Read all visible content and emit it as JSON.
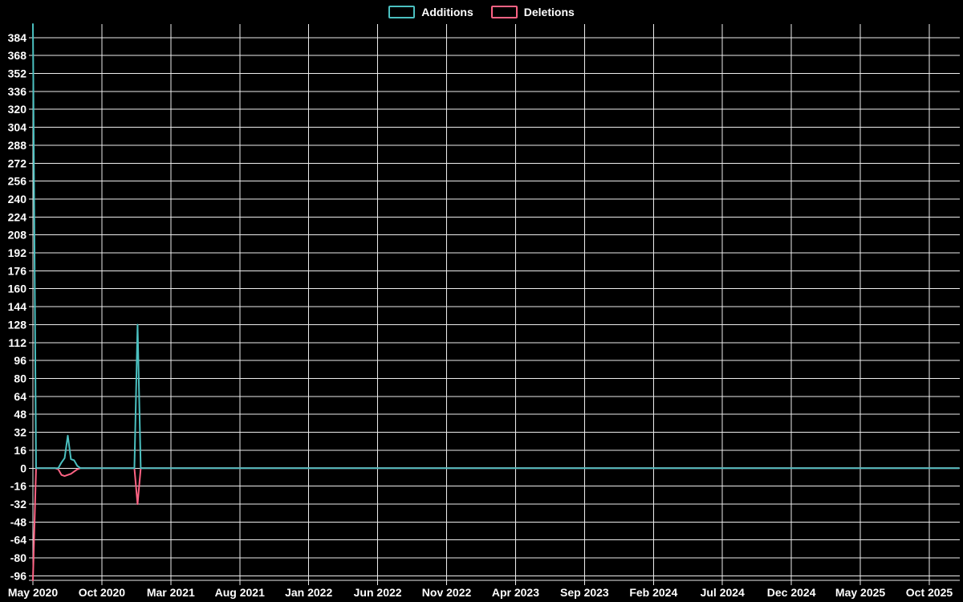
{
  "chart_data": {
    "type": "line",
    "title": "",
    "legend": [
      "Additions",
      "Deletions"
    ],
    "legend_position": "top-center",
    "background_color": "#000000",
    "grid": true,
    "grid_color": "#ededed",
    "text_color": "#ffffff",
    "x_axis": {
      "unit": "weeks, starting week 0 = May 2020",
      "total_weeks": 292,
      "tick_interval_months": 5,
      "tick_labels": [
        "May 2020",
        "Oct 2020",
        "Mar 2021",
        "Aug 2021",
        "Jan 2022",
        "Jun 2022",
        "Nov 2022",
        "Apr 2023",
        "Sep 2023",
        "Feb 2024",
        "Jul 2024",
        "Dec 2024",
        "May 2025",
        "Oct 2025"
      ]
    },
    "y_axis": {
      "min": -100,
      "max": 396,
      "tick_step": 16,
      "tick_labels": [
        384,
        368,
        352,
        336,
        320,
        304,
        288,
        272,
        256,
        240,
        224,
        208,
        192,
        176,
        160,
        144,
        128,
        112,
        96,
        80,
        64,
        48,
        32,
        16,
        0,
        -16,
        -32,
        -48,
        -64,
        -80,
        -96
      ]
    },
    "series": [
      {
        "name": "Additions",
        "color": "#4bc0c0",
        "default_value": 0,
        "points": [
          [
            0,
            396
          ],
          [
            1,
            0
          ],
          [
            8,
            0
          ],
          [
            9,
            5
          ],
          [
            10,
            9
          ],
          [
            11,
            29
          ],
          [
            12,
            8
          ],
          [
            13,
            7
          ],
          [
            14,
            2
          ],
          [
            15,
            0
          ],
          [
            32,
            0
          ],
          [
            33,
            128
          ],
          [
            34,
            0
          ],
          [
            292,
            0
          ]
        ]
      },
      {
        "name": "Deletions",
        "color": "#ff6384",
        "default_value": 0,
        "points": [
          [
            0,
            -100
          ],
          [
            1,
            0
          ],
          [
            8,
            -1
          ],
          [
            9,
            -6
          ],
          [
            10,
            -7
          ],
          [
            11,
            -6
          ],
          [
            12,
            -5
          ],
          [
            13,
            -3
          ],
          [
            14,
            -1
          ],
          [
            15,
            0
          ],
          [
            32,
            0
          ],
          [
            33,
            -32
          ],
          [
            34,
            0
          ],
          [
            292,
            0
          ]
        ]
      }
    ]
  }
}
